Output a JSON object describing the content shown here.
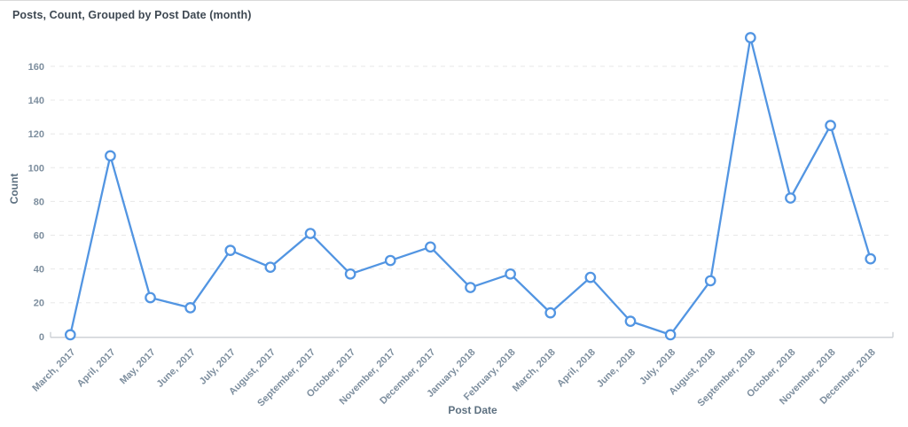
{
  "header": {
    "title": "Posts, Count, Grouped by Post Date (month)"
  },
  "chart_data": {
    "type": "line",
    "title": "Posts, Count, Grouped by Post Date (month)",
    "xlabel": "Post Date",
    "ylabel": "Count",
    "categories": [
      "March, 2017",
      "April, 2017",
      "May, 2017",
      "June, 2017",
      "July, 2017",
      "August, 2017",
      "September, 2017",
      "October, 2017",
      "November, 2017",
      "December, 2017",
      "January, 2018",
      "February, 2018",
      "March, 2018",
      "April, 2018",
      "June, 2018",
      "July, 2018",
      "August, 2018",
      "September, 2018",
      "October, 2018",
      "November, 2018",
      "December, 2018"
    ],
    "values": [
      1,
      107,
      23,
      17,
      51,
      41,
      61,
      37,
      45,
      53,
      29,
      37,
      14,
      35,
      9,
      1,
      33,
      177,
      82,
      125,
      46
    ],
    "ylim": [
      0,
      180
    ],
    "yticks": [
      0,
      20,
      40,
      60,
      80,
      100,
      120,
      140,
      160
    ],
    "grid": "horizontal-dashed",
    "legend": "none"
  },
  "colors": {
    "line": "#5295e2",
    "marker_fill": "#ffffff",
    "grid": "#e8e8e8",
    "axis": "#c9ced3",
    "tick_label": "#7d8e9e",
    "axis_title": "#5d7080",
    "title": "#3e4852"
  }
}
